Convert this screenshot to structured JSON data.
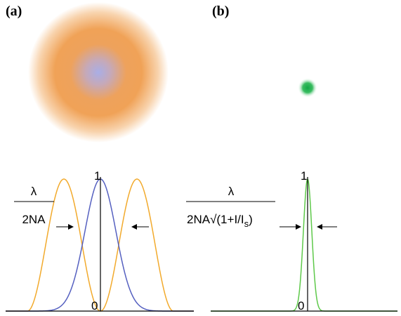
{
  "panels": [
    {
      "label": "(a)",
      "axis_max": "1",
      "axis_min": "0",
      "numerator": "λ",
      "denominator": "2NA"
    },
    {
      "label": "(b)",
      "axis_max": "1",
      "axis_min": "0",
      "numerator": "λ",
      "denominator": "2NA√(1+I/I",
      "denominator_sub": "s",
      "denominator_end": ")"
    }
  ]
}
